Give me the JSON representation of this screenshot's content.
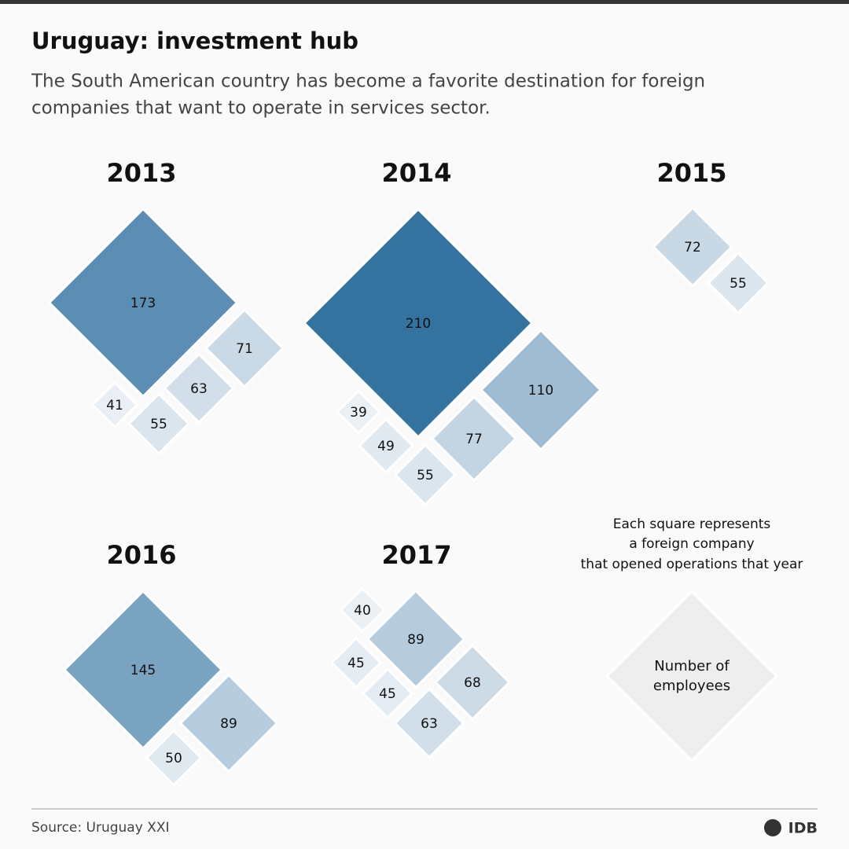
{
  "title": "Uruguay: investment hub",
  "subtitle": [
    "The South American country has become a favorite destination for foreign",
    "companies that want to operate in services sector."
  ],
  "chart_data": [
    {
      "type": "diamond",
      "title": "2013",
      "values": [
        173,
        71,
        63,
        55,
        41
      ]
    },
    {
      "type": "diamond",
      "title": "2014",
      "values": [
        210,
        110,
        77,
        55,
        49,
        39
      ]
    },
    {
      "type": "diamond",
      "title": "2015",
      "values": [
        72,
        55
      ]
    },
    {
      "type": "diamond",
      "title": "2016",
      "values": [
        145,
        89,
        50
      ]
    },
    {
      "type": "diamond",
      "title": "2017",
      "values": [
        89,
        68,
        63,
        45,
        45,
        40
      ]
    }
  ],
  "legend": {
    "text": [
      "Each square represents",
      "a foreign company",
      "that opened operations that year"
    ],
    "label": [
      "Number of",
      "employees"
    ]
  },
  "source": "Source: Uruguay XXI",
  "logo": "IDB"
}
